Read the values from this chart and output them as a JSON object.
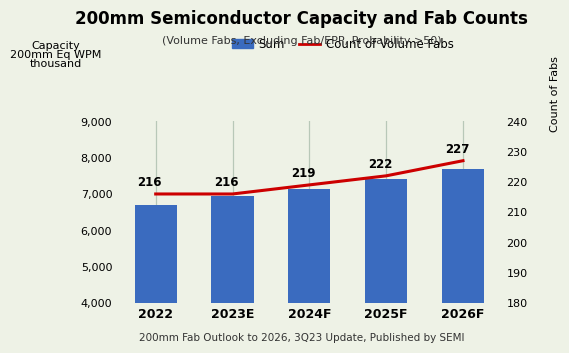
{
  "title": "200mm Semiconductor Capacity and Fab Counts",
  "subtitle": "(Volume Fabs, Excluding Fab/EPP, Probability >50)",
  "footer": "200mm Fab Outlook to 2026, 3Q23 Update, Published by SEMI",
  "categories": [
    "2022",
    "2023E",
    "2024F",
    "2025F",
    "2026F"
  ],
  "bar_values": [
    6700,
    6950,
    7150,
    7400,
    7700
  ],
  "line_values": [
    216,
    216,
    219,
    222,
    227
  ],
  "bar_color": "#3a6bbf",
  "line_color": "#cc0000",
  "background_color": "#eef2e6",
  "ylabel_left_line1": "Capacity",
  "ylabel_left_line2": "200mm Eq WPM",
  "ylabel_left_line3": "thousand",
  "ylabel_right": "Count of Fabs",
  "ylim_left": [
    4000,
    9000
  ],
  "ylim_right": [
    180,
    240
  ],
  "yticks_left": [
    4000,
    5000,
    6000,
    7000,
    8000,
    9000
  ],
  "yticks_right": [
    180,
    190,
    200,
    210,
    220,
    230,
    240
  ],
  "legend_sum": "Sum",
  "legend_line": "Count of Volume Fabs",
  "bar_width": 0.55,
  "vline_color": "#b8c8b8"
}
